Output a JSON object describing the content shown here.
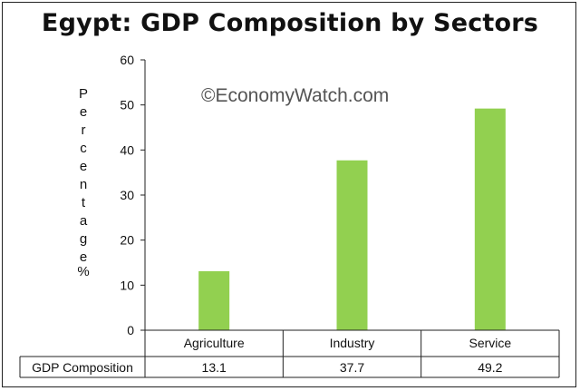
{
  "chart_data": {
    "type": "bar",
    "title": "Egypt: GDP Composition by Sectors",
    "watermark": "©EconomyWatch.com",
    "ylabel": "Percentage%",
    "categories": [
      "Agriculture",
      "Industry",
      "Service"
    ],
    "series": [
      {
        "name": "GDP Composition",
        "values": [
          13.1,
          37.7,
          49.2
        ]
      }
    ],
    "value_labels": [
      "13.1",
      "37.7",
      "49.2"
    ],
    "ylim": [
      0,
      60
    ],
    "yticks": [
      "0",
      "10",
      "20",
      "30",
      "40",
      "50",
      "60"
    ],
    "grid": false,
    "bar_color": "#92d050"
  }
}
